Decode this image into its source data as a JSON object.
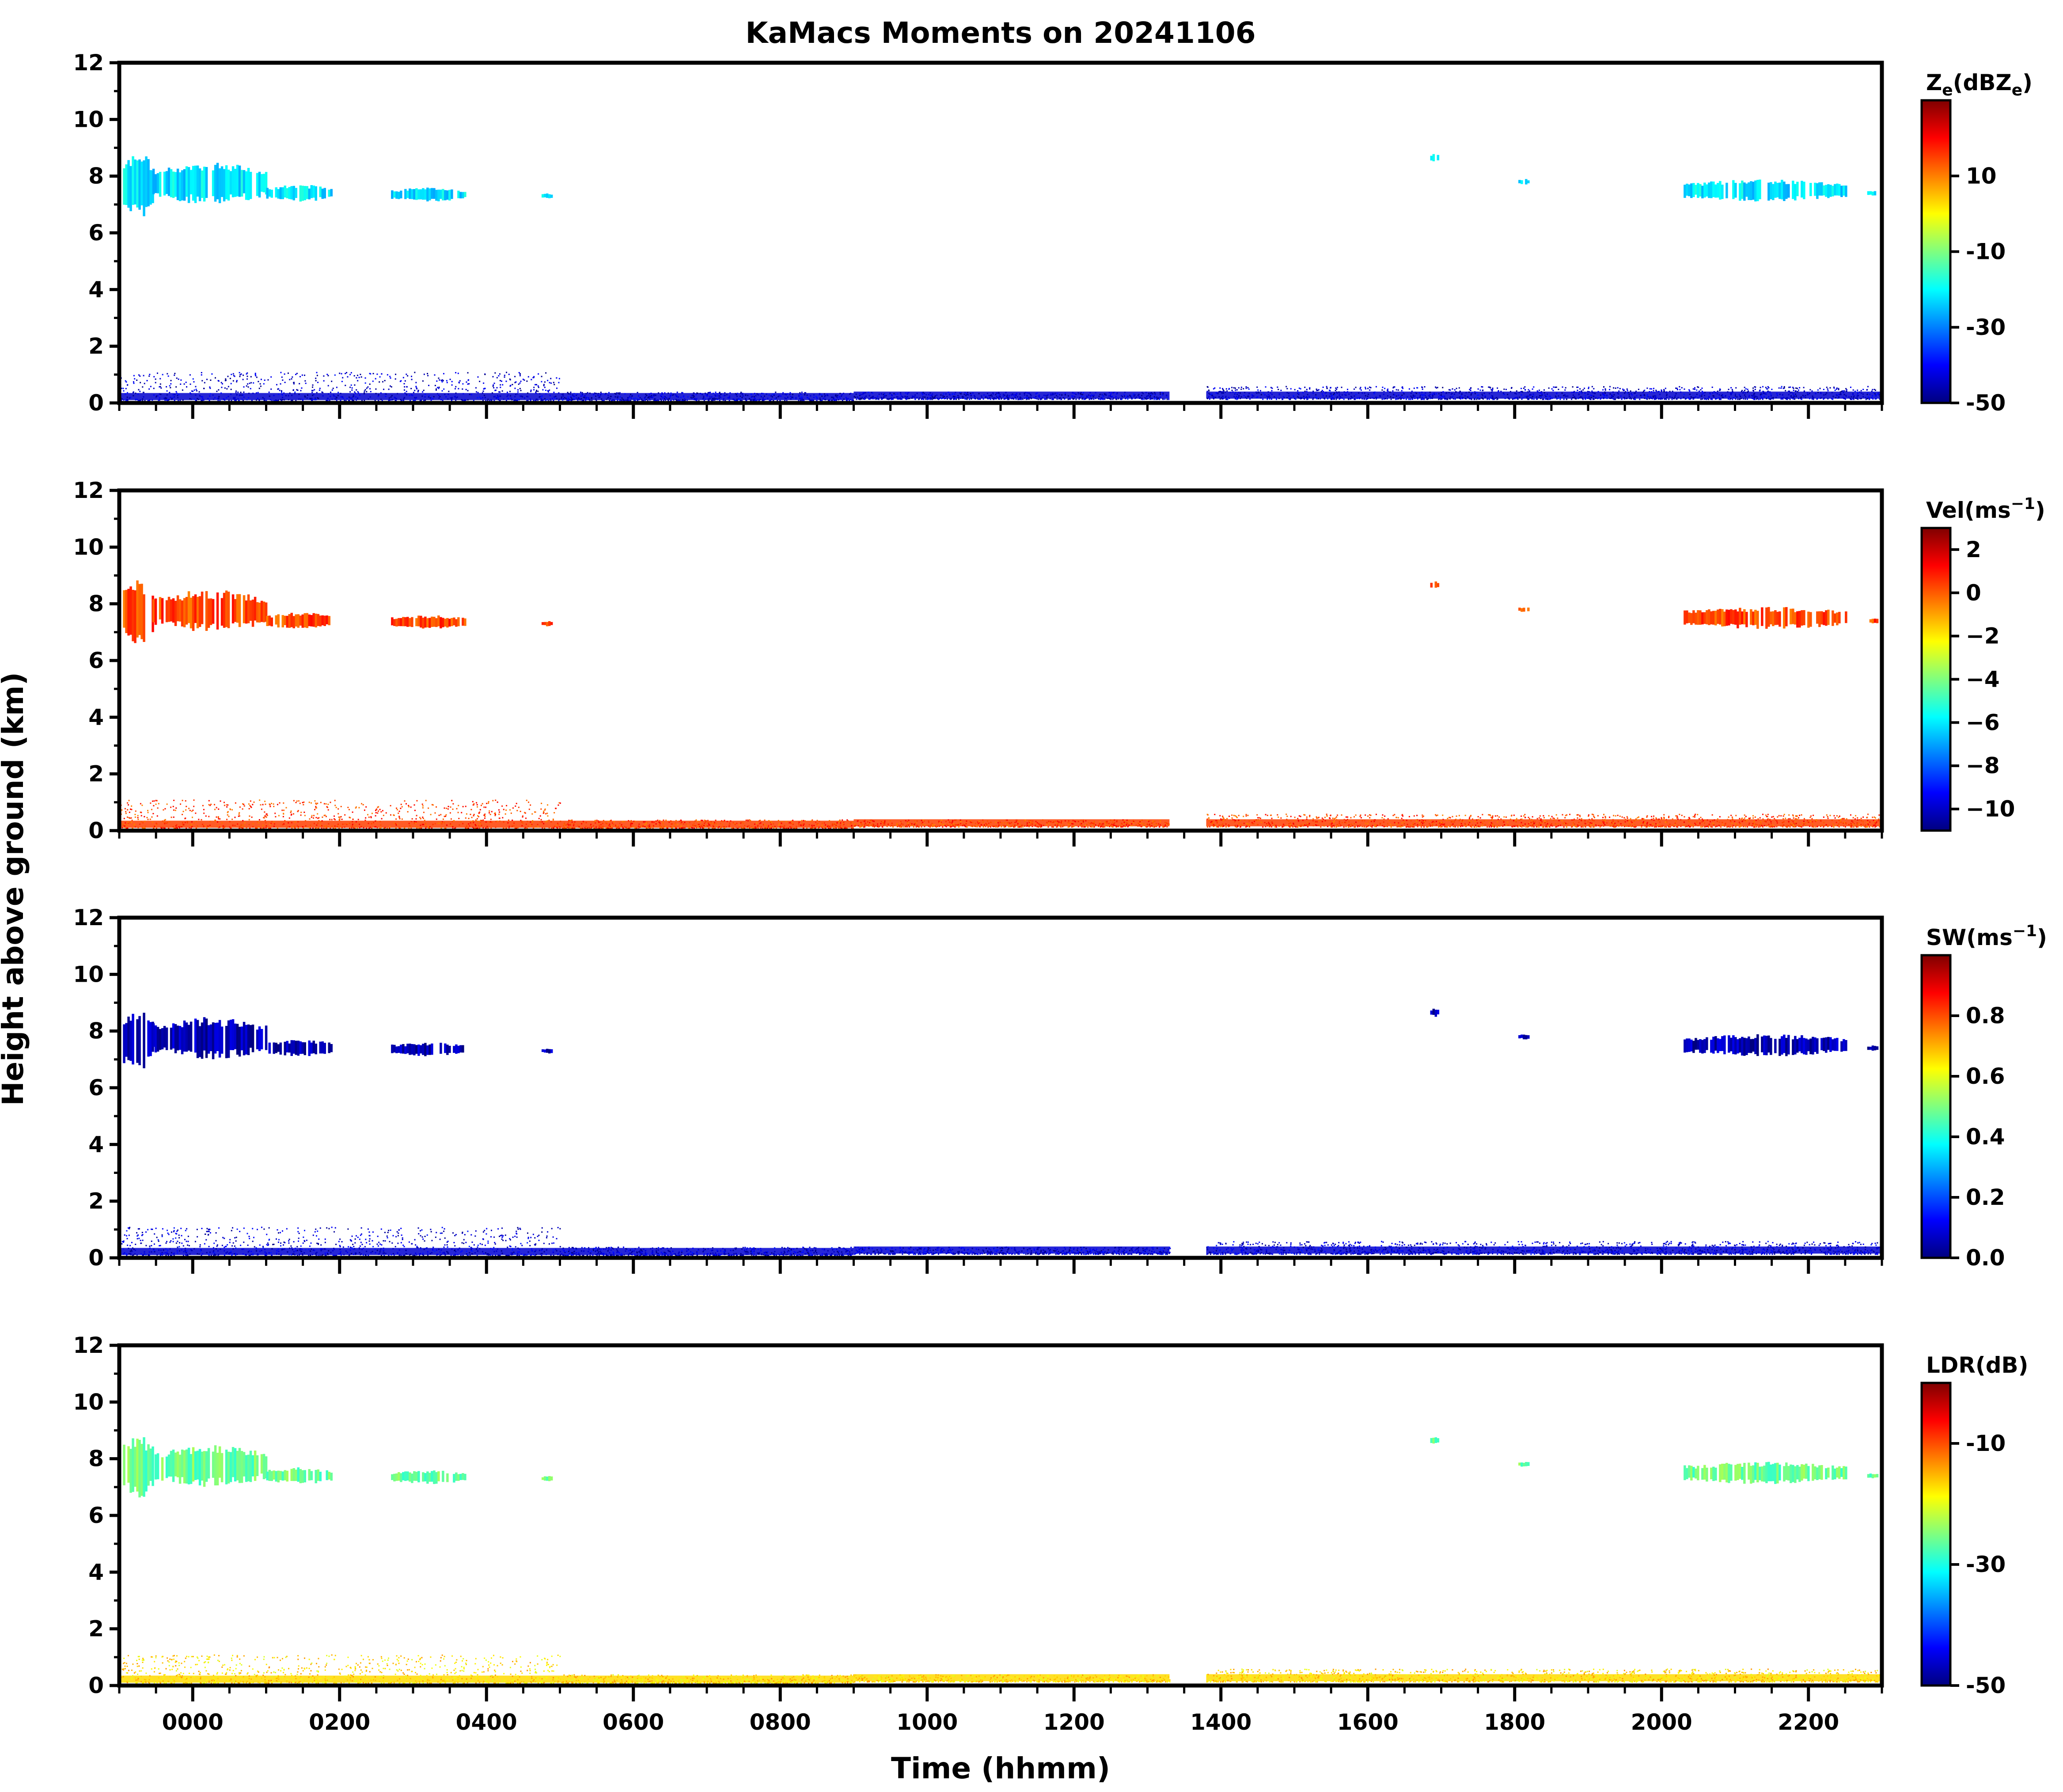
{
  "chart_data": {
    "type": "heatmap",
    "title": "KaMacs Moments on 20241106",
    "xlabel": "Time (hhmm)",
    "ylabel": "Height above ground (km)",
    "x_range_hours": [
      -1.0,
      23.0
    ],
    "x_tick_labels": [
      "0000",
      "0200",
      "0400",
      "0600",
      "0800",
      "1000",
      "1200",
      "1400",
      "1600",
      "1800",
      "2000",
      "2200"
    ],
    "x_tick_hours": [
      0,
      2,
      4,
      6,
      8,
      10,
      12,
      14,
      16,
      18,
      20,
      22
    ],
    "ylim": [
      0,
      12
    ],
    "y_ticks": [
      0,
      2,
      4,
      6,
      8,
      10,
      12
    ],
    "grid": false,
    "colormap": [
      "#00007f",
      "#0000ff",
      "#007fff",
      "#00ffff",
      "#7fff7f",
      "#ffff00",
      "#ff7f00",
      "#ff0000",
      "#7f0000"
    ],
    "panels": [
      {
        "name": "Ze",
        "colorbar": {
          "label_main": "Z",
          "label_sub": "e",
          "label_mid": "(dBZ",
          "label_sub2": "e",
          "label_end": ")",
          "range": [
            -50,
            30
          ],
          "ticks": [
            10,
            -10,
            -30,
            -50
          ],
          "tick_labels": [
            "10",
            "-10",
            "-30",
            "-50"
          ]
        },
        "cloud_value": -22,
        "ground_value": -44
      },
      {
        "name": "Vel",
        "colorbar": {
          "label_main": "Vel(ms",
          "label_sup": "−1",
          "label_end": ")",
          "range": [
            -11,
            3
          ],
          "ticks": [
            2,
            0,
            -2,
            -4,
            -6,
            -8,
            -10
          ],
          "tick_labels": [
            "2",
            "0",
            "−2",
            "−4",
            "−6",
            "−8",
            "−10"
          ]
        },
        "cloud_value": 0.3,
        "ground_value": 0.4
      },
      {
        "name": "SW",
        "colorbar": {
          "label_main": "SW(ms",
          "label_sup": "−1",
          "label_end": ")",
          "range": [
            0,
            1
          ],
          "ticks": [
            0.8,
            0.6,
            0.4,
            0.2,
            0.0
          ],
          "tick_labels": [
            "0.8",
            "0.6",
            "0.4",
            "0.2",
            "0.0"
          ]
        },
        "cloud_value": 0.05,
        "ground_value": 0.08
      },
      {
        "name": "LDR",
        "colorbar": {
          "label_main": "LDR(dB)",
          "range": [
            -50,
            0
          ],
          "ticks": [
            -10,
            -30,
            -50
          ],
          "tick_labels": [
            "-10",
            "-30",
            "-50"
          ]
        },
        "cloud_value": -26,
        "ground_value": -17
      }
    ],
    "cloud_features": [
      {
        "t": [
          -0.95,
          -0.55
        ],
        "base_km": 6.5,
        "top_km": 8.9
      },
      {
        "t": [
          -0.55,
          1.0
        ],
        "base_km": 7.0,
        "top_km": 8.5
      },
      {
        "t": [
          1.0,
          1.9
        ],
        "base_km": 7.1,
        "top_km": 7.7
      },
      {
        "t": [
          2.7,
          3.7
        ],
        "base_km": 7.1,
        "top_km": 7.6
      },
      {
        "t": [
          4.75,
          4.9
        ],
        "base_km": 7.2,
        "top_km": 7.4
      },
      {
        "t": [
          16.85,
          16.95
        ],
        "base_km": 8.5,
        "top_km": 8.8
      },
      {
        "t": [
          18.05,
          18.2
        ],
        "base_km": 7.7,
        "top_km": 7.9
      },
      {
        "t": [
          20.3,
          22.5
        ],
        "base_km": 7.1,
        "top_km": 7.9
      },
      {
        "t": [
          22.8,
          22.95
        ],
        "base_km": 7.3,
        "top_km": 7.5
      }
    ],
    "boundary_layer_features": [
      {
        "t": [
          -1.0,
          5.0
        ],
        "base_km": 0.1,
        "top_km": 1.1
      },
      {
        "t": [
          5.0,
          9.0
        ],
        "base_km": 0.1,
        "top_km": 0.4
      },
      {
        "t": [
          9.0,
          13.3
        ],
        "base_km": 0.15,
        "top_km": 0.4
      },
      {
        "t": [
          13.8,
          23.0
        ],
        "base_km": 0.15,
        "top_km": 0.6
      }
    ]
  }
}
